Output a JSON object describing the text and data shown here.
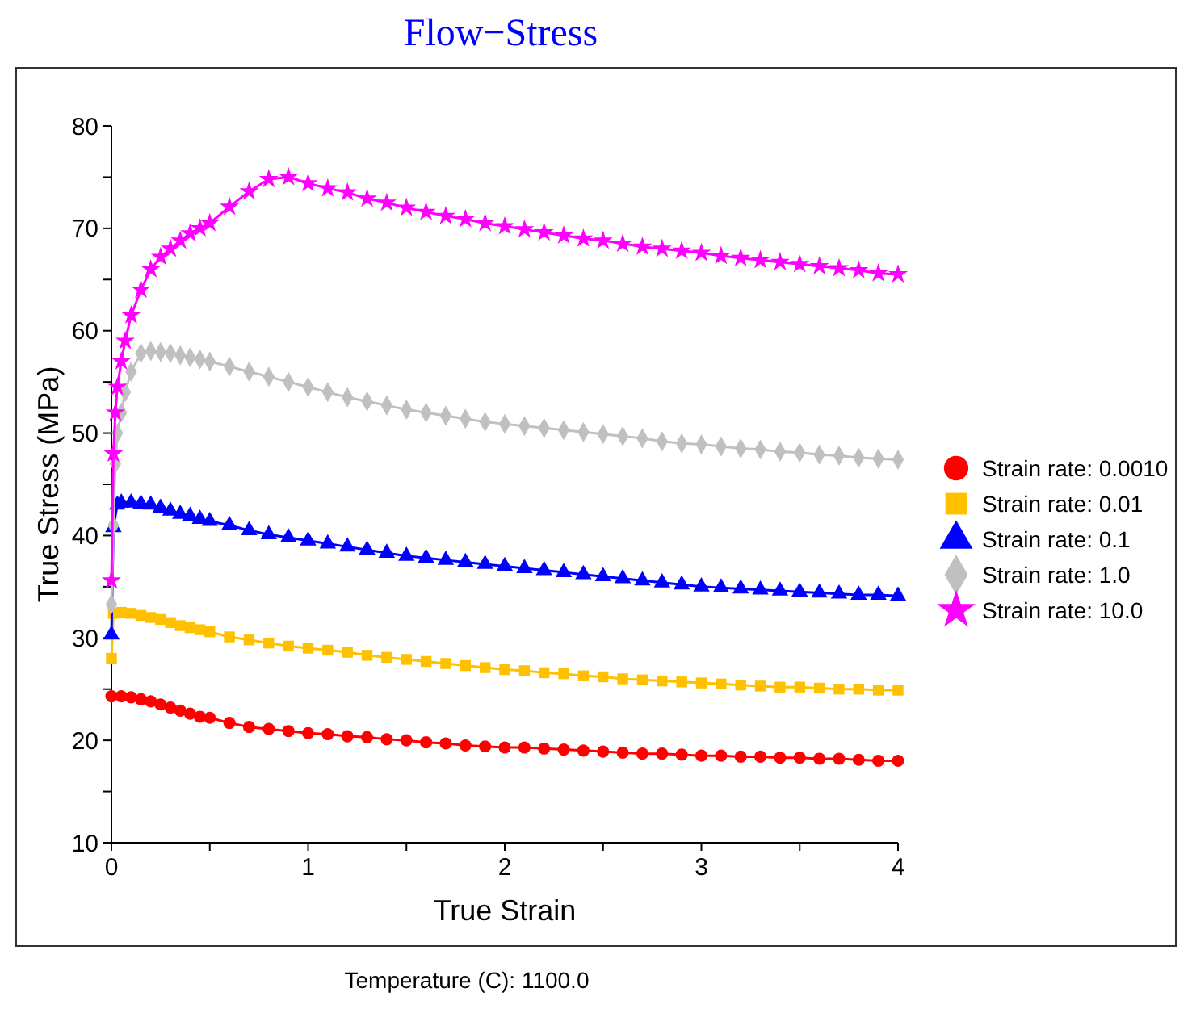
{
  "chart_data": {
    "type": "line",
    "title": "Flow−Stress",
    "xlabel": "True Strain",
    "ylabel": "True Stress (MPa)",
    "annotations": [
      "Temperature (C): 1100.0"
    ],
    "xlim": [
      0,
      4
    ],
    "ylim": [
      10,
      80
    ],
    "xticks": [
      0,
      {
        "value": 0.5,
        "label": null
      },
      1,
      {
        "value": 1.5,
        "label": null
      },
      2,
      {
        "value": 2.5,
        "label": null
      },
      3,
      {
        "value": 3.5,
        "label": null
      },
      4
    ],
    "yticks": [
      10,
      {
        "value": 15,
        "label": null
      },
      20,
      {
        "value": 25,
        "label": null
      },
      30,
      {
        "value": 35,
        "label": null
      },
      40,
      {
        "value": 45,
        "label": null
      },
      50,
      {
        "value": 55,
        "label": null
      },
      60,
      {
        "value": 65,
        "label": null
      },
      70,
      {
        "value": 75,
        "label": null
      },
      80
    ],
    "legend": "right",
    "grid": false,
    "line_style": "solid",
    "series": [
      {
        "name": "Strain rate: 0.0010",
        "color": "#ff0000",
        "marker": "circle",
        "x": [
          0,
          0.05,
          0.1,
          0.15,
          0.2,
          0.25,
          0.3,
          0.35,
          0.4,
          0.45,
          0.5,
          0.6,
          0.7,
          0.8,
          0.9,
          1.0,
          1.1,
          1.2,
          1.3,
          1.4,
          1.5,
          1.6,
          1.7,
          1.8,
          1.9,
          2.0,
          2.1,
          2.2,
          2.3,
          2.4,
          2.5,
          2.6,
          2.7,
          2.8,
          2.9,
          3.0,
          3.1,
          3.2,
          3.3,
          3.4,
          3.5,
          3.6,
          3.7,
          3.8,
          3.9,
          4.0
        ],
        "values": [
          24.3,
          24.3,
          24.2,
          24.0,
          23.8,
          23.5,
          23.2,
          22.9,
          22.6,
          22.3,
          22.2,
          21.7,
          21.3,
          21.1,
          20.9,
          20.7,
          20.6,
          20.4,
          20.3,
          20.1,
          20.0,
          19.8,
          19.7,
          19.5,
          19.4,
          19.3,
          19.3,
          19.2,
          19.1,
          19.0,
          18.9,
          18.8,
          18.7,
          18.7,
          18.6,
          18.5,
          18.5,
          18.4,
          18.4,
          18.3,
          18.3,
          18.2,
          18.2,
          18.1,
          18.0,
          18.0
        ]
      },
      {
        "name": "Strain rate: 0.01",
        "color": "#ffc000",
        "marker": "square",
        "x": [
          0,
          0.01,
          0.05,
          0.1,
          0.15,
          0.2,
          0.25,
          0.3,
          0.35,
          0.4,
          0.45,
          0.5,
          0.6,
          0.7,
          0.8,
          0.9,
          1.0,
          1.1,
          1.2,
          1.3,
          1.4,
          1.5,
          1.6,
          1.7,
          1.8,
          1.9,
          2.0,
          2.1,
          2.2,
          2.3,
          2.4,
          2.5,
          2.6,
          2.7,
          2.8,
          2.9,
          3.0,
          3.1,
          3.2,
          3.3,
          3.4,
          3.5,
          3.6,
          3.7,
          3.8,
          3.9,
          4.0
        ],
        "values": [
          28,
          32.4,
          32.5,
          32.4,
          32.2,
          32.0,
          31.8,
          31.5,
          31.2,
          31.0,
          30.8,
          30.6,
          30.1,
          29.8,
          29.5,
          29.2,
          29.0,
          28.8,
          28.6,
          28.3,
          28.1,
          27.9,
          27.7,
          27.5,
          27.3,
          27.1,
          26.9,
          26.8,
          26.6,
          26.5,
          26.3,
          26.2,
          26.0,
          25.9,
          25.8,
          25.7,
          25.6,
          25.5,
          25.4,
          25.3,
          25.2,
          25.2,
          25.1,
          25.0,
          25.0,
          24.9,
          24.9
        ]
      },
      {
        "name": "Strain rate: 0.1",
        "color": "#0000ff",
        "marker": "triangle",
        "x": [
          0,
          0.01,
          0.03,
          0.05,
          0.1,
          0.15,
          0.2,
          0.25,
          0.3,
          0.35,
          0.4,
          0.45,
          0.5,
          0.6,
          0.7,
          0.8,
          0.9,
          1.0,
          1.1,
          1.2,
          1.3,
          1.4,
          1.5,
          1.6,
          1.7,
          1.8,
          1.9,
          2.0,
          2.1,
          2.2,
          2.3,
          2.4,
          2.5,
          2.6,
          2.7,
          2.8,
          2.9,
          3.0,
          3.1,
          3.2,
          3.3,
          3.4,
          3.5,
          3.6,
          3.7,
          3.8,
          3.9,
          4.0
        ],
        "values": [
          30.3,
          40.8,
          43.0,
          43.2,
          43.2,
          43.1,
          43.0,
          42.7,
          42.4,
          42.1,
          41.9,
          41.6,
          41.4,
          41.0,
          40.5,
          40.1,
          39.8,
          39.5,
          39.2,
          38.9,
          38.6,
          38.3,
          38.0,
          37.8,
          37.6,
          37.4,
          37.2,
          37.0,
          36.8,
          36.6,
          36.4,
          36.2,
          36.0,
          35.8,
          35.6,
          35.4,
          35.2,
          35.0,
          34.9,
          34.8,
          34.7,
          34.6,
          34.5,
          34.4,
          34.3,
          34.2,
          34.2,
          34.1
        ]
      },
      {
        "name": "Strain rate: 1.0",
        "color": "#c0c0c0",
        "marker": "diamond",
        "x": [
          0,
          0.01,
          0.02,
          0.03,
          0.05,
          0.07,
          0.1,
          0.15,
          0.2,
          0.25,
          0.3,
          0.35,
          0.4,
          0.45,
          0.5,
          0.6,
          0.7,
          0.8,
          0.9,
          1.0,
          1.1,
          1.2,
          1.3,
          1.4,
          1.5,
          1.6,
          1.7,
          1.8,
          1.9,
          2.0,
          2.1,
          2.2,
          2.3,
          2.4,
          2.5,
          2.6,
          2.7,
          2.8,
          2.9,
          3.0,
          3.1,
          3.2,
          3.3,
          3.4,
          3.5,
          3.6,
          3.7,
          3.8,
          3.9,
          4.0
        ],
        "values": [
          33.3,
          41,
          47,
          50,
          52,
          54,
          56,
          57.8,
          58.0,
          57.9,
          57.8,
          57.6,
          57.4,
          57.2,
          57.0,
          56.5,
          56.0,
          55.5,
          55.0,
          54.5,
          54.0,
          53.5,
          53.1,
          52.7,
          52.3,
          52.0,
          51.7,
          51.4,
          51.1,
          50.9,
          50.7,
          50.5,
          50.3,
          50.1,
          49.9,
          49.7,
          49.5,
          49.2,
          49.0,
          48.9,
          48.7,
          48.5,
          48.4,
          48.2,
          48.1,
          47.9,
          47.8,
          47.6,
          47.5,
          47.4
        ]
      },
      {
        "name": "Strain rate: 10.0",
        "color": "#ff00ff",
        "marker": "star",
        "x": [
          0,
          0.01,
          0.02,
          0.03,
          0.05,
          0.07,
          0.1,
          0.15,
          0.2,
          0.25,
          0.3,
          0.35,
          0.4,
          0.45,
          0.5,
          0.6,
          0.7,
          0.8,
          0.9,
          1.0,
          1.1,
          1.2,
          1.3,
          1.4,
          1.5,
          1.6,
          1.7,
          1.8,
          1.9,
          2.0,
          2.1,
          2.2,
          2.3,
          2.4,
          2.5,
          2.6,
          2.7,
          2.8,
          2.9,
          3.0,
          3.1,
          3.2,
          3.3,
          3.4,
          3.5,
          3.6,
          3.7,
          3.8,
          3.9,
          4.0
        ],
        "values": [
          35.6,
          48,
          52,
          54.5,
          57,
          59,
          61.5,
          64,
          66,
          67.2,
          68,
          68.8,
          69.5,
          70,
          70.5,
          72.1,
          73.6,
          74.8,
          75.0,
          74.4,
          73.9,
          73.5,
          72.9,
          72.5,
          72.0,
          71.6,
          71.2,
          70.9,
          70.5,
          70.2,
          69.9,
          69.6,
          69.3,
          69.0,
          68.8,
          68.5,
          68.2,
          68.0,
          67.8,
          67.6,
          67.3,
          67.1,
          66.9,
          66.7,
          66.5,
          66.3,
          66.1,
          65.9,
          65.6,
          65.5
        ]
      }
    ]
  }
}
